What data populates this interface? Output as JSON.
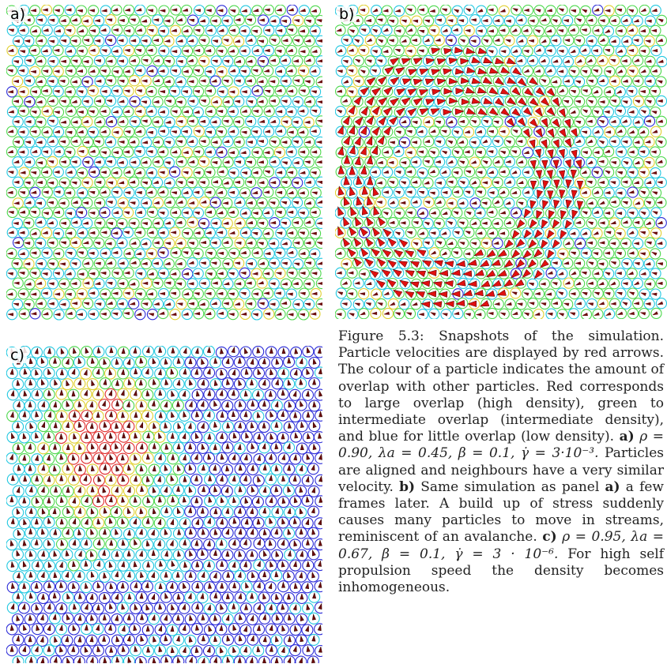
{
  "panels": [
    {
      "id": "a",
      "label": "a)"
    },
    {
      "id": "b",
      "label": "b)"
    },
    {
      "id": "c",
      "label": "c)"
    }
  ],
  "caption": {
    "number": "Figure 5.3:",
    "intro": "Snapshots of the simulation. Particle velocities are displayed by red arrows. The colour of a particle indicates the amount of overlap with other particles. Red corresponds to large overlap (high density), green to intermediate overlap (intermediate density), and blue for little overlap (low density).",
    "a_label": "a)",
    "a_params": "ρ = 0.90, λa = 0.45, β = 0.1, γ̇ = 3·10⁻³.",
    "a_text": "Particles are aligned and neighbours have a very similar velocity.",
    "b_label": "b)",
    "b_text_1": "Same simulation as panel",
    "b_ref": "a)",
    "b_text_2": "a few frames later. A build up of stress suddenly causes many particles to move in streams, reminiscent of an avalanche.",
    "c_label": "c)",
    "c_params": "ρ = 0.95, λa = 0.67, β = 0.1, γ̇ = 3 · 10⁻⁶.",
    "c_text": "For high self propulsion speed the density becomes inhomogeneous."
  },
  "colors": {
    "low_overlap": "#2b2bd8",
    "low_mid_overlap": "#22c8e0",
    "mid_overlap": "#4cd84c",
    "mid_high_overlap": "#e0d030",
    "high_overlap": "#e03030",
    "arrow_fill": "#e01010",
    "arrow_dark": "#6a0a0a"
  }
}
